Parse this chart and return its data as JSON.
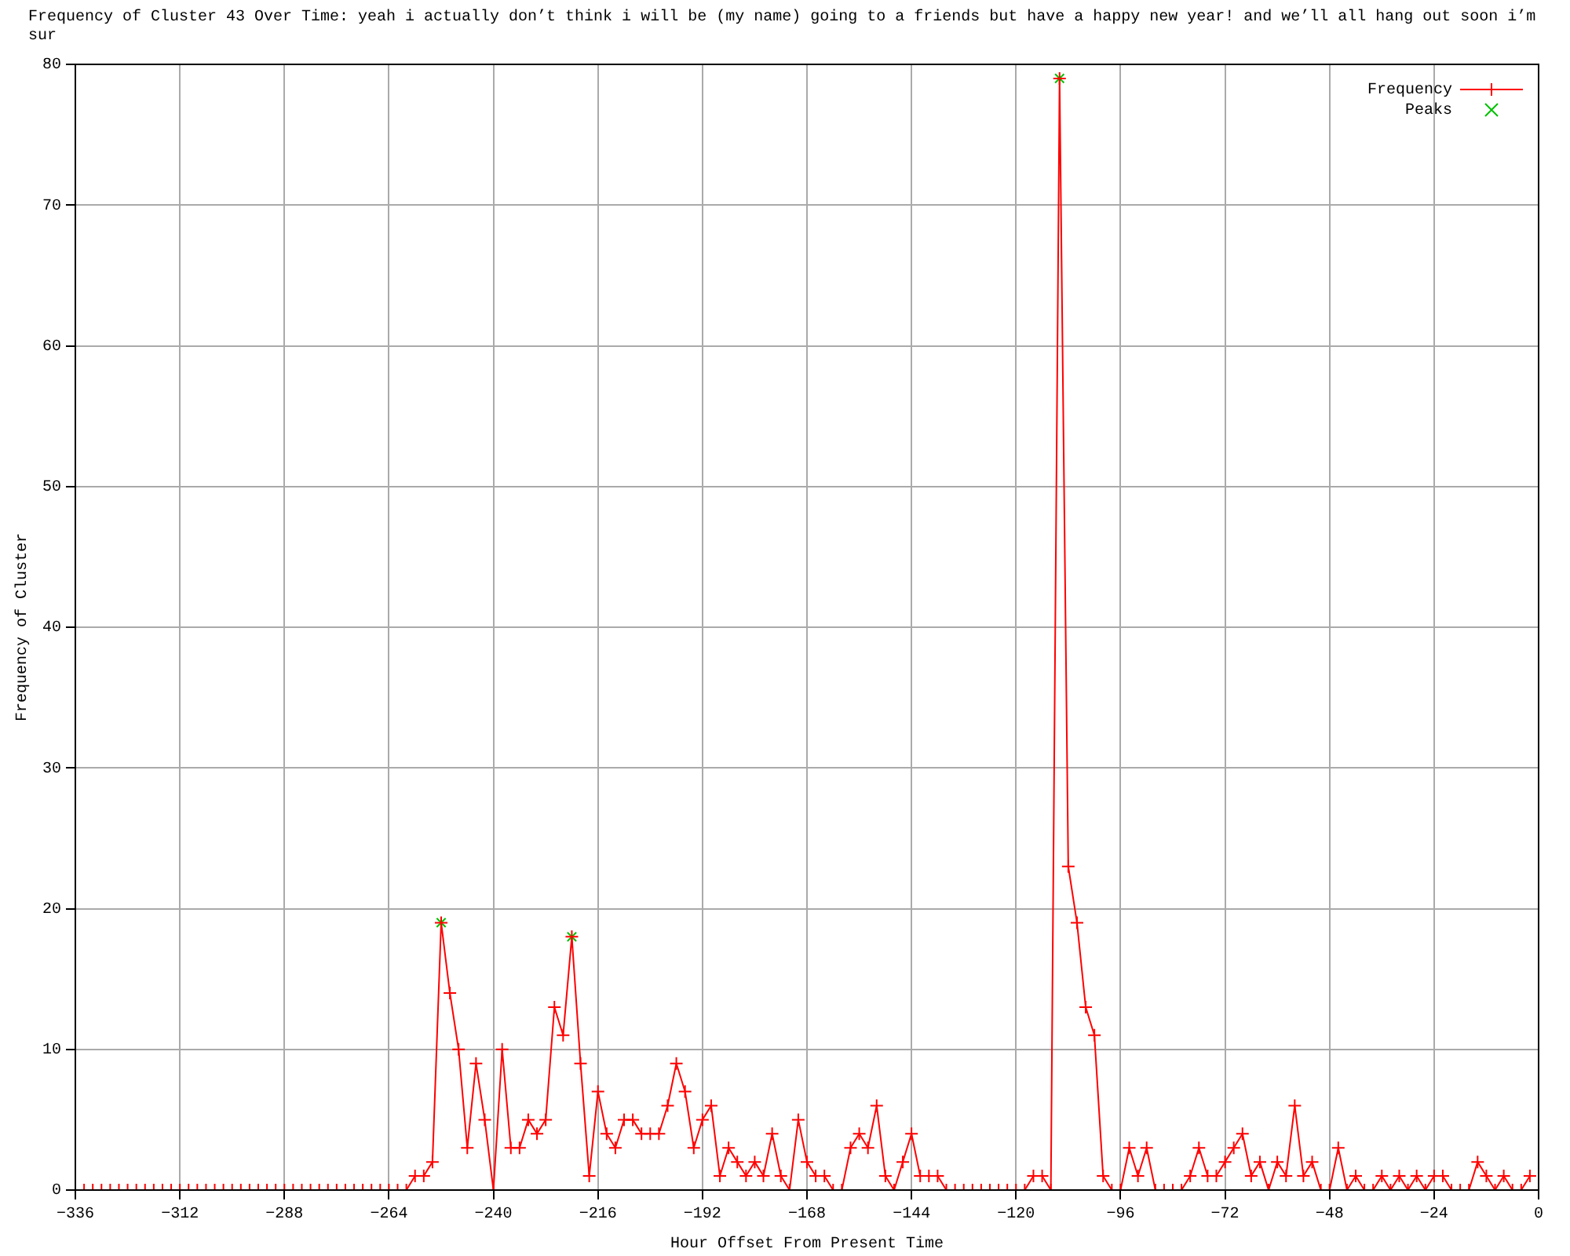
{
  "chart_data": {
    "type": "line",
    "title": "Frequency of Cluster 43 Over Time: yeah i actually don’t think i will be (my name) going to a friends but have a happy new year! and we’ll all hang out soon i’m sur",
    "xlabel": "Hour Offset From Present Time",
    "ylabel": "Frequency of Cluster",
    "x": [
      -336,
      -334,
      -332,
      -330,
      -328,
      -326,
      -324,
      -322,
      -320,
      -318,
      -316,
      -314,
      -312,
      -310,
      -308,
      -306,
      -304,
      -302,
      -300,
      -298,
      -296,
      -294,
      -292,
      -290,
      -288,
      -286,
      -284,
      -282,
      -280,
      -278,
      -276,
      -274,
      -272,
      -270,
      -268,
      -266,
      -264,
      -262,
      -260,
      -258,
      -256,
      -254,
      -252,
      -250,
      -248,
      -246,
      -244,
      -242,
      -240,
      -238,
      -236,
      -234,
      -232,
      -230,
      -228,
      -226,
      -224,
      -222,
      -220,
      -218,
      -216,
      -214,
      -212,
      -210,
      -208,
      -206,
      -204,
      -202,
      -200,
      -198,
      -196,
      -194,
      -192,
      -190,
      -188,
      -186,
      -184,
      -182,
      -180,
      -178,
      -176,
      -174,
      -172,
      -170,
      -168,
      -166,
      -164,
      -162,
      -160,
      -158,
      -156,
      -154,
      -152,
      -150,
      -148,
      -146,
      -144,
      -142,
      -140,
      -138,
      -136,
      -134,
      -132,
      -130,
      -128,
      -126,
      -124,
      -122,
      -120,
      -118,
      -116,
      -114,
      -112,
      -110,
      -108,
      -106,
      -104,
      -102,
      -100,
      -98,
      -96,
      -94,
      -92,
      -90,
      -88,
      -86,
      -84,
      -82,
      -80,
      -78,
      -76,
      -74,
      -72,
      -70,
      -68,
      -66,
      -64,
      -62,
      -60,
      -58,
      -56,
      -54,
      -52,
      -50,
      -48,
      -46,
      -44,
      -42,
      -40,
      -38,
      -36,
      -34,
      -32,
      -30,
      -28,
      -26,
      -24,
      -22,
      -20,
      -18,
      -16,
      -14,
      -12,
      -10,
      -8,
      -6,
      -4,
      -2
    ],
    "series": [
      {
        "name": "Frequency",
        "color": "#ff0000",
        "values": [
          0,
          0,
          0,
          0,
          0,
          0,
          0,
          0,
          0,
          0,
          0,
          0,
          0,
          0,
          0,
          0,
          0,
          0,
          0,
          0,
          0,
          0,
          0,
          0,
          0,
          0,
          0,
          0,
          0,
          0,
          0,
          0,
          0,
          0,
          0,
          0,
          0,
          0,
          0,
          1,
          1,
          2,
          19,
          14,
          10,
          3,
          9,
          5,
          0,
          10,
          3,
          3,
          5,
          4,
          5,
          13,
          11,
          18,
          9,
          1,
          7,
          4,
          3,
          5,
          5,
          4,
          4,
          4,
          6,
          9,
          7,
          3,
          5,
          6,
          1,
          3,
          2,
          1,
          2,
          1,
          4,
          1,
          0,
          5,
          2,
          1,
          1,
          0,
          0,
          3,
          4,
          3,
          6,
          1,
          0,
          2,
          4,
          1,
          1,
          1,
          0,
          0,
          0,
          0,
          0,
          0,
          0,
          0,
          0,
          0,
          1,
          1,
          0,
          79,
          23,
          19,
          13,
          11,
          1,
          0,
          0,
          3,
          1,
          3,
          0,
          0,
          0,
          0,
          1,
          3,
          1,
          1,
          2,
          3,
          4,
          1,
          2,
          0,
          2,
          1,
          6,
          1,
          2,
          0,
          0,
          3,
          0,
          1,
          0,
          0,
          1,
          0,
          1,
          0,
          1,
          0,
          1,
          1,
          0,
          0,
          0,
          2,
          1,
          0,
          1,
          0,
          0,
          1
        ]
      },
      {
        "name": "Peaks",
        "type": "scatter",
        "color": "#00c000",
        "x": [
          -252,
          -222,
          -110
        ],
        "values": [
          19,
          18,
          79
        ]
      }
    ],
    "xlim": [
      -336,
      0
    ],
    "xticks": [
      -336,
      -312,
      -288,
      -264,
      -240,
      -216,
      -192,
      -168,
      -144,
      -120,
      -96,
      -72,
      -48,
      -24,
      0
    ],
    "ylim": [
      0,
      80
    ],
    "yticks": [
      0,
      10,
      20,
      30,
      40,
      50,
      60,
      70,
      80
    ],
    "grid": true,
    "legend": "top right",
    "marker": "cross"
  }
}
